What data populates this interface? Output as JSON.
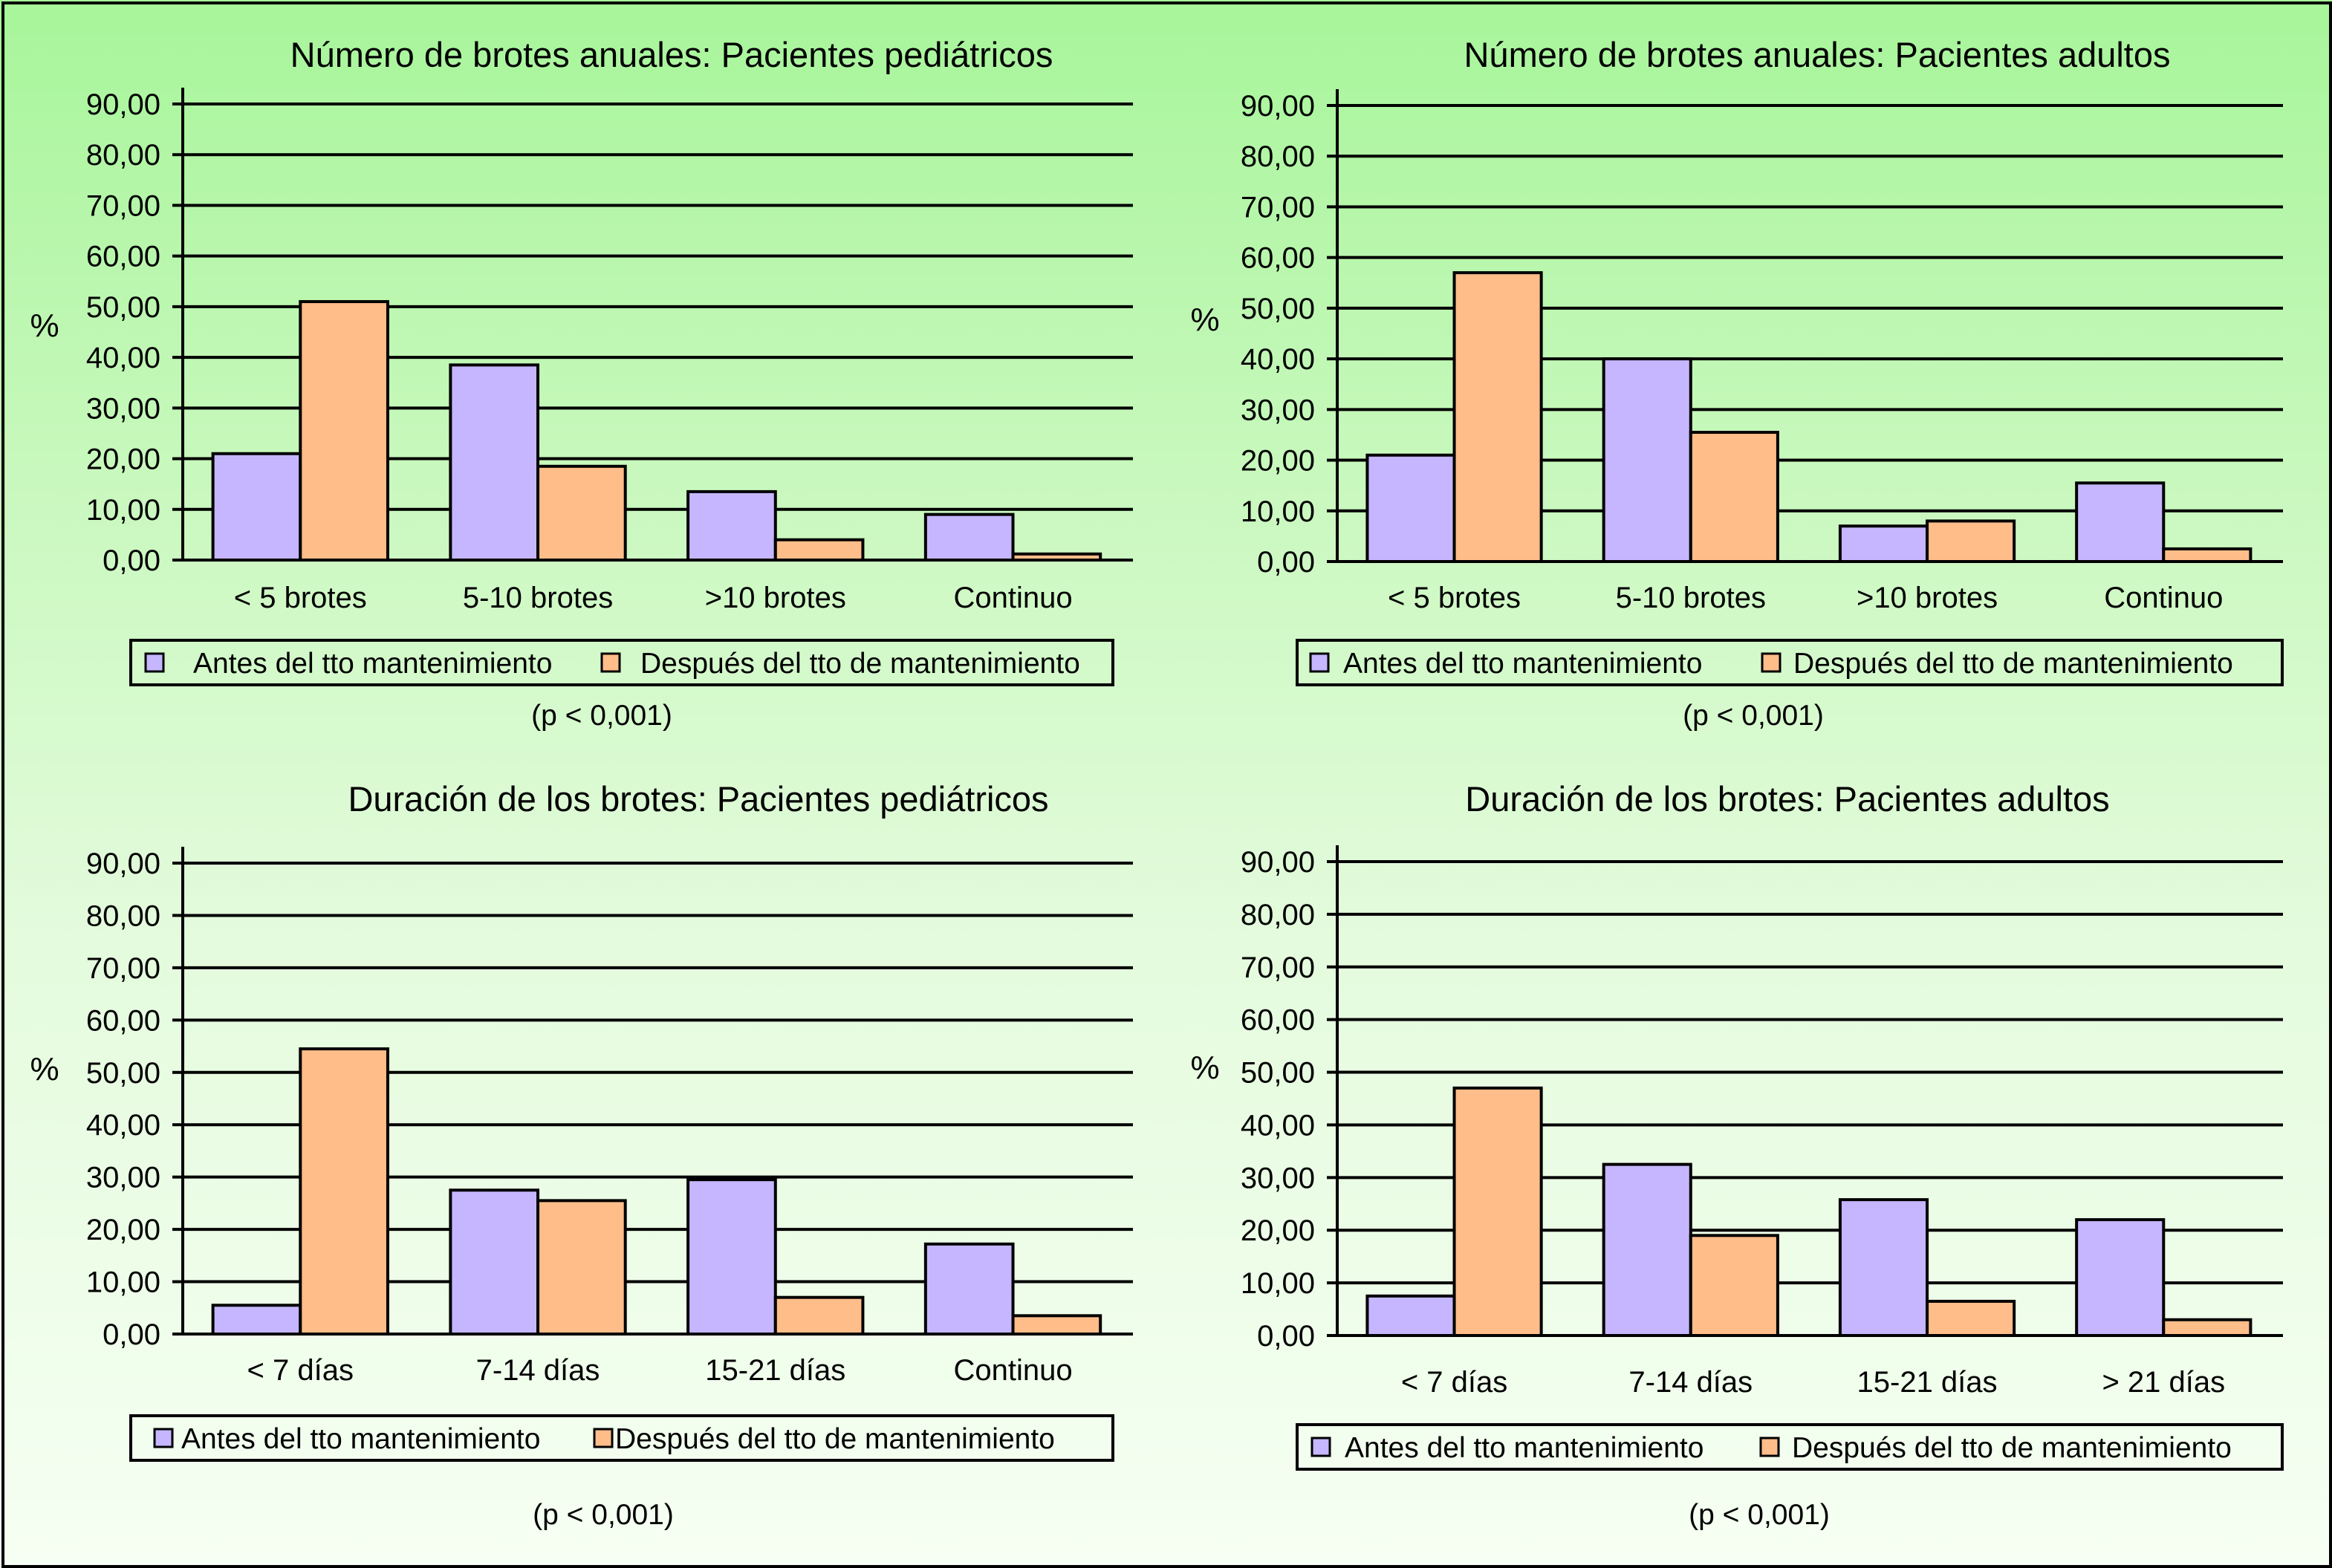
{
  "colors": {
    "before": "#c5b6ff",
    "after": "#ffbd8a"
  },
  "chart_data": [
    {
      "type": "bar",
      "title": "Número de brotes anuales: Pacientes pediátricos",
      "ylabel": "%",
      "ylim": [
        0,
        90
      ],
      "yticks": [
        "0,00",
        "10,00",
        "20,00",
        "30,00",
        "40,00",
        "50,00",
        "60,00",
        "70,00",
        "80,00",
        "90,00"
      ],
      "categories": [
        "< 5 brotes",
        "5-10 brotes",
        ">10 brotes",
        "Continuo"
      ],
      "series": [
        {
          "name": "Antes del tto mantenimiento",
          "values": [
            21,
            38.5,
            13.5,
            9
          ]
        },
        {
          "name": "Después del tto de mantenimiento",
          "values": [
            51,
            18.5,
            4,
            1.2
          ]
        }
      ],
      "note": "(p < 0,001)",
      "grid": true,
      "legend": "bottom"
    },
    {
      "type": "bar",
      "title": "Número de brotes anuales: Pacientes adultos",
      "ylabel": "%",
      "ylim": [
        0,
        90
      ],
      "yticks": [
        "0,00",
        "10,00",
        "20,00",
        "30,00",
        "40,00",
        "50,00",
        "60,00",
        "70,00",
        "80,00",
        "90,00"
      ],
      "categories": [
        "< 5 brotes",
        "5-10 brotes",
        ">10 brotes",
        "Continuo"
      ],
      "series": [
        {
          "name": "Antes del tto mantenimiento",
          "values": [
            21,
            40,
            7,
            15.5
          ]
        },
        {
          "name": "Después del tto de mantenimiento",
          "values": [
            57,
            25.5,
            8,
            2.5
          ]
        }
      ],
      "note": "(p < 0,001)",
      "grid": true,
      "legend": "bottom"
    },
    {
      "type": "bar",
      "title": "Duración de los brotes: Pacientes pediátricos",
      "ylabel": "%",
      "ylim": [
        0,
        90
      ],
      "yticks": [
        "0,00",
        "10,00",
        "20,00",
        "30,00",
        "40,00",
        "50,00",
        "60,00",
        "70,00",
        "80,00",
        "90,00"
      ],
      "categories": [
        "< 7 días",
        "7-14 días",
        "15-21 días",
        "Continuo"
      ],
      "series": [
        {
          "name": "Antes del tto mantenimiento",
          "values": [
            5.5,
            27.5,
            29.5,
            17.2
          ]
        },
        {
          "name": "Después del tto de mantenimiento",
          "values": [
            54.5,
            25.5,
            7,
            3.5
          ]
        }
      ],
      "note": "(p < 0,001)",
      "grid": true,
      "legend": "bottom"
    },
    {
      "type": "bar",
      "title": "Duración de los brotes: Pacientes adultos",
      "ylabel": "%",
      "ylim": [
        0,
        90
      ],
      "yticks": [
        "0,00",
        "10,00",
        "20,00",
        "30,00",
        "40,00",
        "50,00",
        "60,00",
        "70,00",
        "80,00",
        "90,00"
      ],
      "categories": [
        "< 7 días",
        "7-14 días",
        "15-21 días",
        "> 21 días"
      ],
      "series": [
        {
          "name": "Antes del tto mantenimiento",
          "values": [
            7.5,
            32.5,
            25.8,
            22
          ]
        },
        {
          "name": "Después del tto de mantenimiento",
          "values": [
            47,
            19,
            6.5,
            3
          ]
        }
      ],
      "note": "(p < 0,001)",
      "grid": true,
      "legend": "bottom"
    }
  ]
}
